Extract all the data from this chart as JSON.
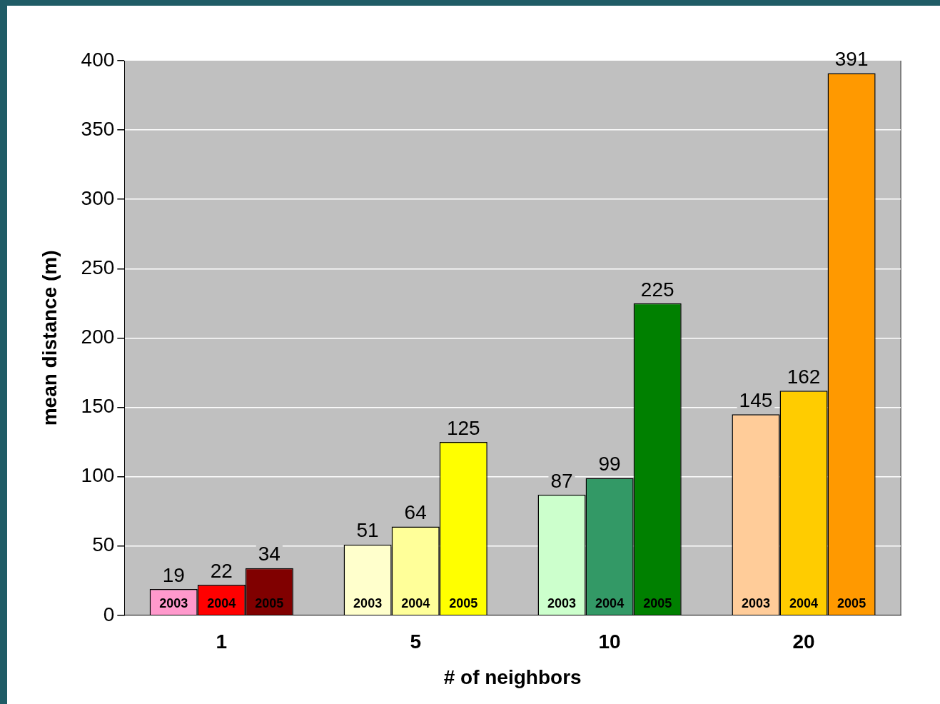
{
  "chart_data": {
    "type": "bar",
    "xlabel": "# of neighbors",
    "ylabel": "mean distance (m)",
    "categories": [
      "1",
      "5",
      "10",
      "20"
    ],
    "series": [
      {
        "name": "2003",
        "colors": [
          "#ff99cc",
          "#ffffcc",
          "#ccffcc",
          "#ffcc99"
        ],
        "values": [
          19,
          51,
          87,
          145
        ]
      },
      {
        "name": "2004",
        "colors": [
          "#ff0000",
          "#ffff99",
          "#339966",
          "#ffcc00"
        ],
        "values": [
          22,
          64,
          99,
          162
        ]
      },
      {
        "name": "2005",
        "colors": [
          "#800000",
          "#ffff00",
          "#008000",
          "#ff9900"
        ],
        "values": [
          34,
          125,
          225,
          391
        ]
      }
    ],
    "ylim": [
      0,
      400
    ],
    "yticks": [
      0,
      50,
      100,
      150,
      200,
      250,
      300,
      350,
      400
    ],
    "grid": "y",
    "legend": false,
    "data_labels": true
  }
}
